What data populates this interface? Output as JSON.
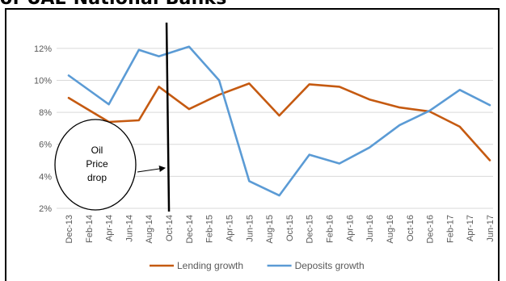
{
  "title": "of UAE National Banks",
  "chart_data": {
    "type": "line",
    "categories": [
      "Dec-13",
      "Feb-14",
      "Apr-14",
      "Jun-14",
      "Aug-14",
      "Oct-14",
      "Dec-14",
      "Feb-15",
      "Apr-15",
      "Jun-15",
      "Aug-15",
      "Oct-15",
      "Dec-15",
      "Feb-16",
      "Apr-16",
      "Jun-16",
      "Aug-16",
      "Oct-16",
      "Dec-16",
      "Feb-17",
      "Apr-17",
      "Jun-17"
    ],
    "y_ticks": [
      "2%",
      "4%",
      "6%",
      "8%",
      "10%",
      "12%"
    ],
    "ylim": [
      2,
      13
    ],
    "grid": true,
    "legend_position": "bottom",
    "series": [
      {
        "name": "Lending growth",
        "color": "#C55A11",
        "points": [
          {
            "x": "Dec-13",
            "y": 8.9
          },
          {
            "x": "Apr-14",
            "y": 7.4
          },
          {
            "x": "Jul-14",
            "y": 7.5
          },
          {
            "x": "Sep-14",
            "y": 9.6
          },
          {
            "x": "Dec-14",
            "y": 8.2
          },
          {
            "x": "Mar-15",
            "y": 9.1
          },
          {
            "x": "Jun-15",
            "y": 9.8
          },
          {
            "x": "Sep-15",
            "y": 7.8
          },
          {
            "x": "Dec-15",
            "y": 9.75
          },
          {
            "x": "Mar-16",
            "y": 9.6
          },
          {
            "x": "Jun-16",
            "y": 8.8
          },
          {
            "x": "Sep-16",
            "y": 8.3
          },
          {
            "x": "Dec-16",
            "y": 8.05
          },
          {
            "x": "Mar-17",
            "y": 7.1
          },
          {
            "x": "Jun-17",
            "y": 5.0
          }
        ]
      },
      {
        "name": "Deposits growth",
        "color": "#5B9BD5",
        "points": [
          {
            "x": "Dec-13",
            "y": 10.3
          },
          {
            "x": "Apr-14",
            "y": 8.5
          },
          {
            "x": "Jul-14",
            "y": 11.9
          },
          {
            "x": "Sep-14",
            "y": 11.5
          },
          {
            "x": "Dec-14",
            "y": 12.1
          },
          {
            "x": "Mar-15",
            "y": 10.0
          },
          {
            "x": "Jun-15",
            "y": 3.7
          },
          {
            "x": "Sep-15",
            "y": 2.8
          },
          {
            "x": "Dec-15",
            "y": 5.35
          },
          {
            "x": "Mar-16",
            "y": 4.8
          },
          {
            "x": "Jun-16",
            "y": 5.8
          },
          {
            "x": "Sep-16",
            "y": 7.2
          },
          {
            "x": "Dec-16",
            "y": 8.1
          },
          {
            "x": "Mar-17",
            "y": 9.4
          },
          {
            "x": "Jun-17",
            "y": 8.45
          }
        ]
      }
    ],
    "annotations": {
      "event_label": "Oil Price drop",
      "event_lines": [
        "Oil",
        "Price",
        "drop"
      ],
      "event_date": "Oct-14"
    }
  }
}
